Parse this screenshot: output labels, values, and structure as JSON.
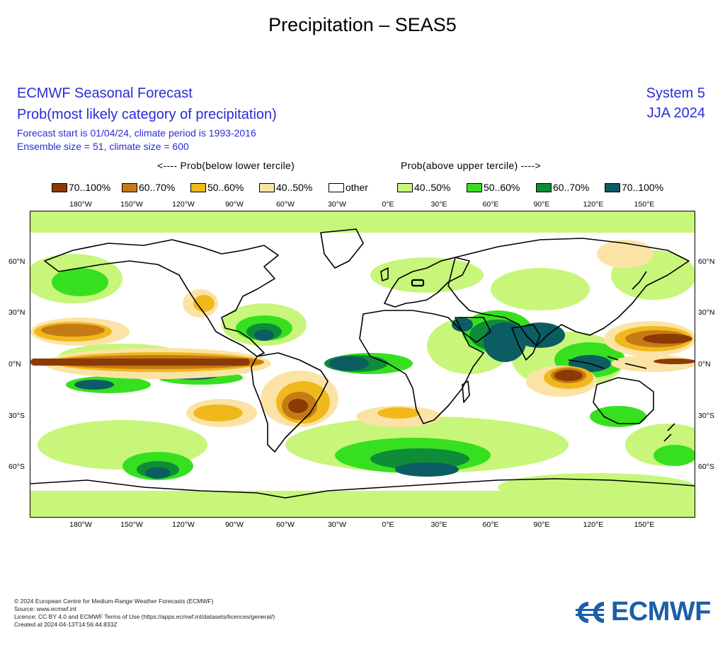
{
  "title": "Precipitation – SEAS5",
  "header": {
    "line1": "ECMWF Seasonal Forecast",
    "line2": "Prob(most likely category of precipitation)",
    "line3": "Forecast start is 01/04/24, climate period is 1993-2016",
    "line4": "Ensemble size = 51, climate size = 600",
    "system": "System 5",
    "season": "JJA 2024"
  },
  "legend": {
    "below_label": "<---- Prob(below lower tercile)",
    "above_label": "Prob(above upper tercile) ---->",
    "items": [
      {
        "label": "70..100%",
        "color": "#8c3a04"
      },
      {
        "label": "60..70%",
        "color": "#c57b15"
      },
      {
        "label": "50..60%",
        "color": "#f1b81c"
      },
      {
        "label": "40..50%",
        "color": "#fbe3a6"
      },
      {
        "label": "other",
        "color": "#ffffff"
      },
      {
        "label": "40..50%",
        "color": "#c7f67a"
      },
      {
        "label": "50..60%",
        "color": "#37e01f"
      },
      {
        "label": "60..70%",
        "color": "#0e8c37"
      },
      {
        "label": "70..100%",
        "color": "#0b5c63"
      }
    ]
  },
  "lon_labels": [
    "180°W",
    "150°W",
    "120°W",
    "90°W",
    "60°W",
    "30°W",
    "0°E",
    "30°E",
    "60°E",
    "90°E",
    "120°E",
    "150°E"
  ],
  "lat_labels": [
    "60°N",
    "30°N",
    "0°N",
    "30°S",
    "60°S"
  ],
  "footer": {
    "line1": "© 2024 European Centre for Medium-Range Weather Forecasts (ECMWF)",
    "line2": "Source: www.ecmwf.int",
    "line3": "Licence: CC BY 4.0 and ECMWF Terms of Use (https://apps.ecmwf.int/datasets/licences/general/)",
    "line4": "Created at 2024-04-13T14:56:44.833Z"
  },
  "logo_text": "ECMWF"
}
